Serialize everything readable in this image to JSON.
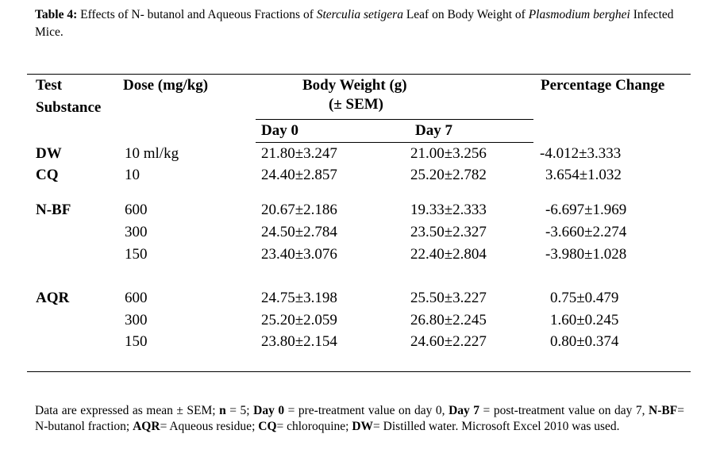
{
  "caption": {
    "label": "Table 4:",
    "text_1": " Effects of N- butanol and Aqueous Fractions of ",
    "italic_1": "Sterculia setigera",
    "text_2": " Leaf on Body Weight of ",
    "italic_2": "Plasmodium berghei",
    "text_3": " Infected Mice."
  },
  "headers": {
    "test_line1": "Test",
    "test_line2": "Substance",
    "dose": "Dose (mg/kg)",
    "bw_line1": "Body Weight (g)",
    "bw_line2": "(± SEM)",
    "pct": "Percentage Change",
    "day0": "Day 0",
    "day7": "Day 7"
  },
  "rows": [
    {
      "substance": "DW",
      "dose": "10 ml/kg",
      "day0": "21.80±3.247",
      "day7": "21.00±3.256",
      "pct": "-4.012±3.333"
    },
    {
      "substance": "CQ",
      "dose": "10",
      "day0": "24.40±2.857",
      "day7": "25.20±2.782",
      "pct": "3.654±1.032"
    },
    {
      "substance": "N-BF",
      "dose": "600",
      "day0": "20.67±2.186",
      "day7": "19.33±2.333",
      "pct": "-6.697±1.969"
    },
    {
      "substance": "",
      "dose": "300",
      "day0": "24.50±2.784",
      "day7": "23.50±2.327",
      "pct": "-3.660±2.274"
    },
    {
      "substance": "",
      "dose": "150",
      "day0": "23.40±3.076",
      "day7": "22.40±2.804",
      "pct": "-3.980±1.028"
    },
    {
      "substance": "AQR",
      "dose": "600",
      "day0": "24.75±3.198",
      "day7": "25.50±3.227",
      "pct": "0.75±0.479"
    },
    {
      "substance": "",
      "dose": "300",
      "day0": "25.20±2.059",
      "day7": "26.80±2.245",
      "pct": "1.60±0.245"
    },
    {
      "substance": "",
      "dose": "150",
      "day0": "23.80±2.154",
      "day7": "24.60±2.227",
      "pct": "0.80±0.374"
    }
  ],
  "footnote": {
    "t1": "Data are expressed as mean ± SEM; ",
    "b1": "n",
    "t2": " = 5; ",
    "b2": "Day 0",
    "t3": " = pre-treatment value on day 0, ",
    "b3": "Day 7",
    "t4": " = post-treatment value on day 7, ",
    "b4": "N-BF",
    "t5": "= N-butanol fraction; ",
    "b5": "AQR",
    "t6": "= Aqueous residue; ",
    "b6": "CQ",
    "t7": "= chloroquine; ",
    "b7": "DW",
    "t8": "= Distilled water. Microsoft Excel 2010 was used."
  }
}
